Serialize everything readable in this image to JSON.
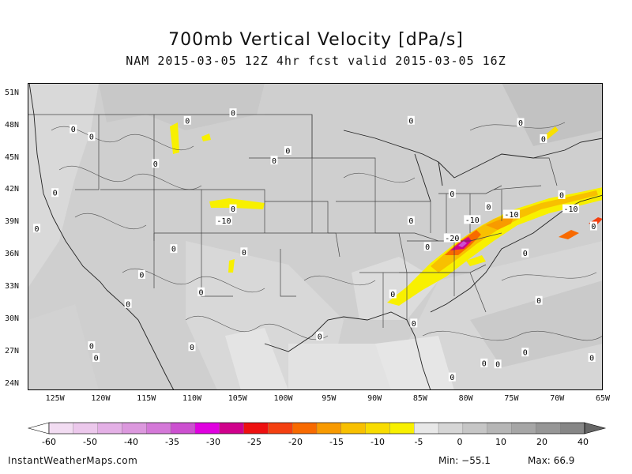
{
  "title": "700mb Vertical Velocity [dPa/s]",
  "subtitle": "NAM 2015-03-05 12Z 4hr fcst valid 2015-03-05 16Z",
  "map": {
    "lon_range": [
      -128,
      -65
    ],
    "lat_range": [
      23.5,
      52
    ],
    "lat_labels": [
      {
        "lat": 51,
        "text": "51N"
      },
      {
        "lat": 48,
        "text": "48N"
      },
      {
        "lat": 45,
        "text": "45N"
      },
      {
        "lat": 42,
        "text": "42N"
      },
      {
        "lat": 39,
        "text": "39N"
      },
      {
        "lat": 36,
        "text": "36N"
      },
      {
        "lat": 33,
        "text": "33N"
      },
      {
        "lat": 30,
        "text": "30N"
      },
      {
        "lat": 27,
        "text": "27N"
      },
      {
        "lat": 24,
        "text": "24N"
      }
    ],
    "lon_labels": [
      {
        "lon": -125,
        "text": "125W"
      },
      {
        "lon": -120,
        "text": "120W"
      },
      {
        "lon": -115,
        "text": "115W"
      },
      {
        "lon": -110,
        "text": "110W"
      },
      {
        "lon": -105,
        "text": "105W"
      },
      {
        "lon": -100,
        "text": "100W"
      },
      {
        "lon": -95,
        "text": "95W"
      },
      {
        "lon": -90,
        "text": "90W"
      },
      {
        "lon": -85,
        "text": "85W"
      },
      {
        "lon": -80,
        "text": "80W"
      },
      {
        "lon": -75,
        "text": "75W"
      },
      {
        "lon": -70,
        "text": "70W"
      },
      {
        "lon": -65,
        "text": "65W"
      }
    ],
    "contour_labels": [
      {
        "lon": -121,
        "lat": 47,
        "text": "0"
      },
      {
        "lon": -123,
        "lat": 47.7,
        "text": "0"
      },
      {
        "lon": -105.5,
        "lat": 49.2,
        "text": "0"
      },
      {
        "lon": -101,
        "lat": 44.8,
        "text": "0"
      },
      {
        "lon": -125,
        "lat": 41.8,
        "text": "0"
      },
      {
        "lon": -127,
        "lat": 38.5,
        "text": "0"
      },
      {
        "lon": -105.5,
        "lat": 40.3,
        "text": "0"
      },
      {
        "lon": -106.5,
        "lat": 39.2,
        "text": "-10"
      },
      {
        "lon": -104.3,
        "lat": 36.3,
        "text": "0"
      },
      {
        "lon": -109,
        "lat": 32.6,
        "text": "0"
      },
      {
        "lon": -115.5,
        "lat": 34.2,
        "text": "0"
      },
      {
        "lon": -117,
        "lat": 31.5,
        "text": "0"
      },
      {
        "lon": -121,
        "lat": 27.6,
        "text": "0"
      },
      {
        "lon": -120.5,
        "lat": 26.5,
        "text": "0"
      },
      {
        "lon": -110,
        "lat": 27.5,
        "text": "0"
      },
      {
        "lon": -96,
        "lat": 28.5,
        "text": "0"
      },
      {
        "lon": -88,
        "lat": 32.4,
        "text": "0"
      },
      {
        "lon": -85.7,
        "lat": 29.7,
        "text": "0"
      },
      {
        "lon": -86,
        "lat": 39.2,
        "text": "0"
      },
      {
        "lon": -84.2,
        "lat": 36.8,
        "text": "0"
      },
      {
        "lon": -81.5,
        "lat": 41.7,
        "text": "0"
      },
      {
        "lon": -86,
        "lat": 48.5,
        "text": "0"
      },
      {
        "lon": -74,
        "lat": 48.3,
        "text": "0"
      },
      {
        "lon": -71.5,
        "lat": 46.8,
        "text": "0"
      },
      {
        "lon": -77.5,
        "lat": 40.5,
        "text": "0"
      },
      {
        "lon": -73.5,
        "lat": 36.2,
        "text": "0"
      },
      {
        "lon": -69.5,
        "lat": 41.6,
        "text": "0"
      },
      {
        "lon": -66,
        "lat": 38.7,
        "text": "0"
      },
      {
        "lon": -72,
        "lat": 31.8,
        "text": "0"
      },
      {
        "lon": -73.5,
        "lat": 27,
        "text": "0"
      },
      {
        "lon": -66.2,
        "lat": 26.5,
        "text": "0"
      },
      {
        "lon": -78,
        "lat": 26,
        "text": "0"
      },
      {
        "lon": -76.5,
        "lat": 25.9,
        "text": "0"
      },
      {
        "lon": -81.5,
        "lat": 24.7,
        "text": "0"
      },
      {
        "lon": -79.3,
        "lat": 39.3,
        "text": "-10"
      },
      {
        "lon": -81.5,
        "lat": 37.6,
        "text": "-20"
      },
      {
        "lon": -75,
        "lat": 39.8,
        "text": "-10"
      },
      {
        "lon": -68.5,
        "lat": 40.3,
        "text": "-10"
      },
      {
        "lon": -114,
        "lat": 44.5,
        "text": "0"
      },
      {
        "lon": -110.5,
        "lat": 48.5,
        "text": "0"
      },
      {
        "lon": -99.5,
        "lat": 45.7,
        "text": "0"
      },
      {
        "lon": -112,
        "lat": 36.6,
        "text": "0"
      }
    ]
  },
  "colorbar": {
    "labels": [
      "-60",
      "-50",
      "-40",
      "-35",
      "-30",
      "-25",
      "-20",
      "-15",
      "-10",
      "-5",
      "0",
      "10",
      "20",
      "40"
    ],
    "colors": [
      "#f2dcf2",
      "#ecc8ec",
      "#e4b0e6",
      "#dc98de",
      "#d478d8",
      "#cc50d0",
      "#e000e0",
      "#d0008c",
      "#ee1010",
      "#f44010",
      "#f86a00",
      "#f89a00",
      "#f8c000",
      "#f8dc00",
      "#f8f000",
      "#e8e8e8",
      "#d6d6d6",
      "#c6c6c6",
      "#b6b6b6",
      "#a6a6a6",
      "#969696",
      "#868686"
    ]
  },
  "footer": {
    "site": "InstantWeatherMaps.com",
    "min_label": "Min:",
    "min_value": "−55.1",
    "max_label": "Max:",
    "max_value": "66.9"
  }
}
